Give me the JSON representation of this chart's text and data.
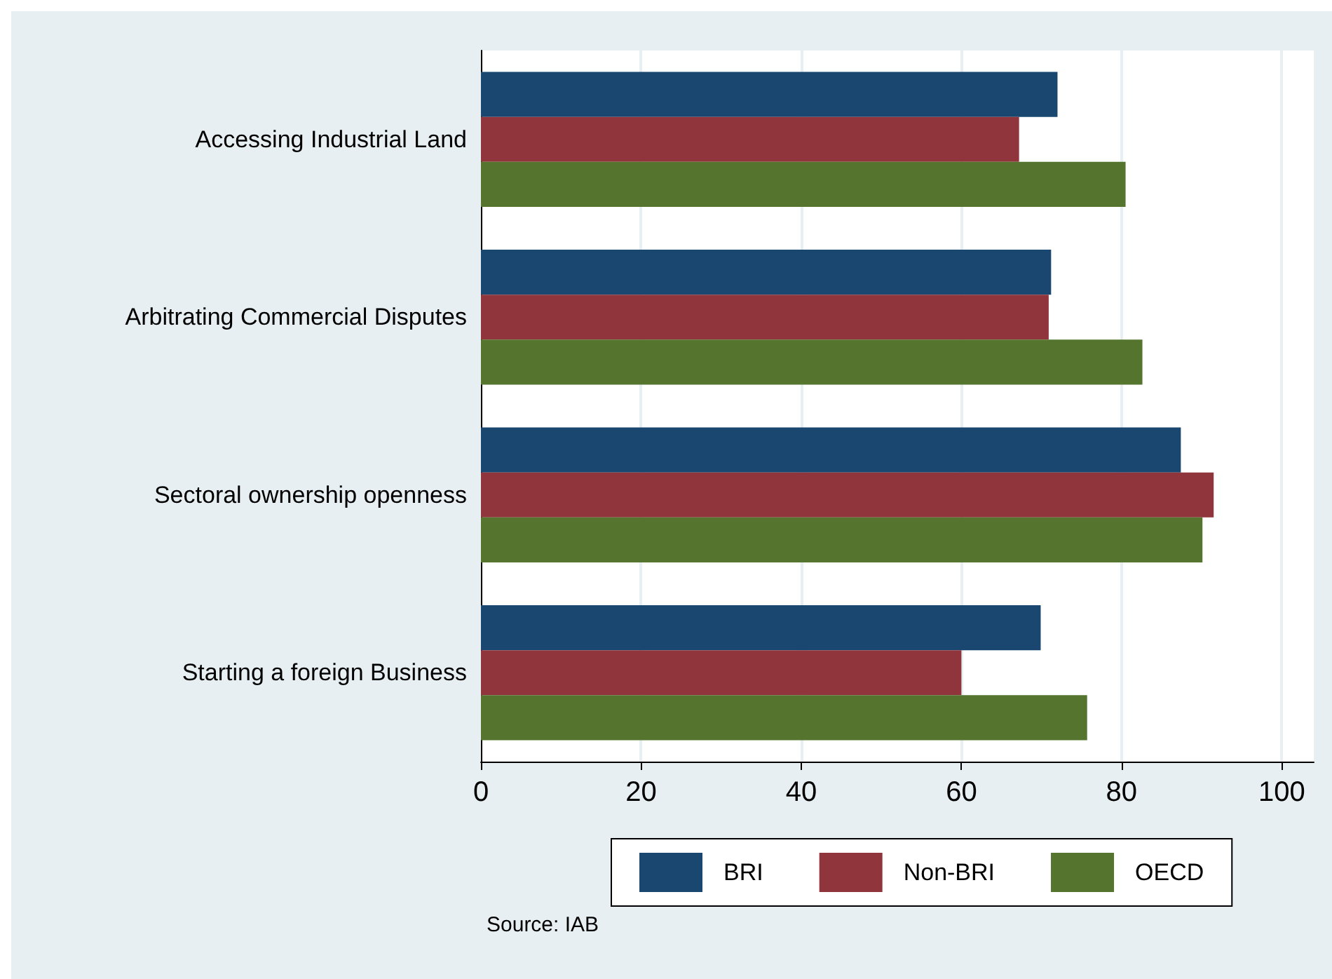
{
  "chart_data": {
    "type": "bar",
    "orientation": "horizontal",
    "categories": [
      "Accessing Industrial Land",
      "Arbitrating Commercial Disputes",
      "Sectoral ownership openness",
      "Starting a foreign Business"
    ],
    "series": [
      {
        "name": "BRI",
        "color": "#1a476f",
        "values": [
          72.0,
          71.2,
          87.4,
          69.9
        ]
      },
      {
        "name": "Non-BRI",
        "color": "#90353b",
        "values": [
          67.2,
          70.9,
          91.5,
          60.0
        ]
      },
      {
        "name": "OECD",
        "color": "#55752f",
        "values": [
          80.5,
          82.6,
          90.1,
          75.7
        ]
      }
    ],
    "xlim": [
      0,
      104
    ],
    "xticks": [
      0,
      20,
      40,
      60,
      80,
      100
    ],
    "grid": "x",
    "legend": "bottom",
    "annotations": [
      "Source: IAB"
    ]
  }
}
